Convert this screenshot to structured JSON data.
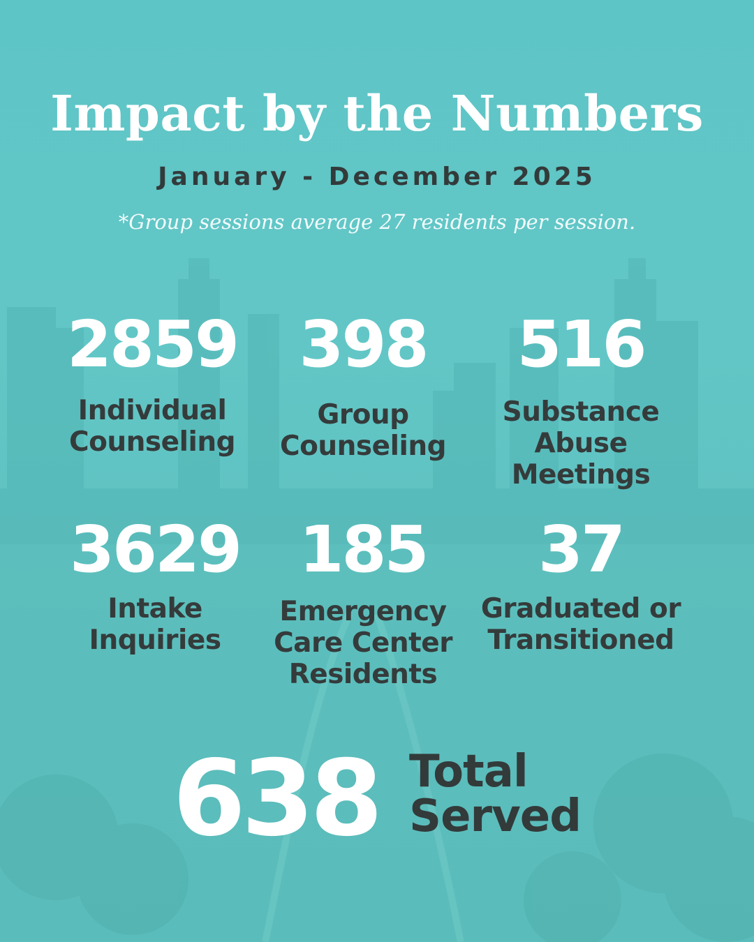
{
  "header": {
    "title": "Impact by the Numbers",
    "date_range": "January - December 2025",
    "note": "*Group sessions average 27 residents per session."
  },
  "stats": [
    {
      "number": "2859",
      "label_lines": [
        "Individual",
        "Counseling"
      ]
    },
    {
      "number": "398",
      "label_lines": [
        "Group",
        "Counseling"
      ]
    },
    {
      "number": "516",
      "label_lines": [
        "Substance",
        "Abuse",
        "Meetings"
      ]
    },
    {
      "number": "3629",
      "label_lines": [
        "Intake",
        "Inquiries"
      ]
    },
    {
      "number": "185",
      "label_lines": [
        "Emergency",
        "Care Center",
        "Residents"
      ]
    },
    {
      "number": "37",
      "label_lines": [
        "Graduated or",
        "Transitioned"
      ]
    }
  ],
  "total": {
    "number": "638",
    "label_lines": [
      "Total",
      "Served"
    ]
  },
  "colors": {
    "background": "#5ec5c7",
    "number_text": "#ffffff",
    "label_text": "#353b3b"
  }
}
